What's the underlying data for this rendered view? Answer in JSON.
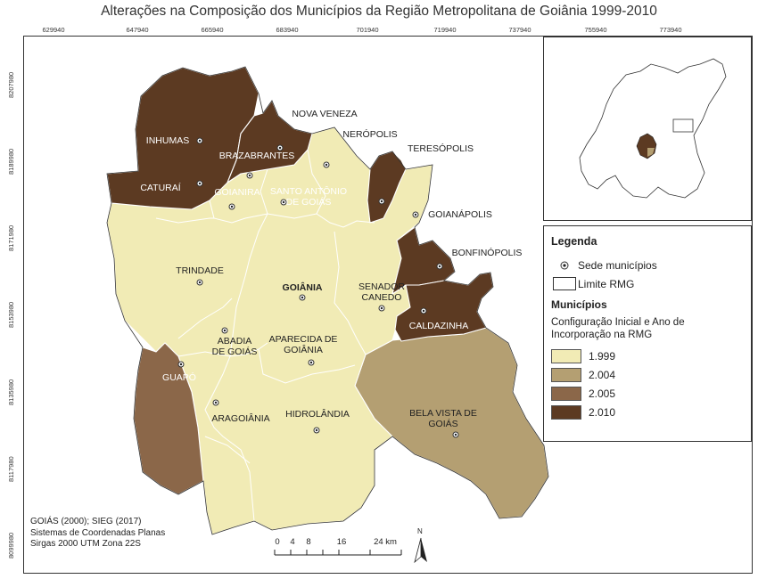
{
  "title": "Alterações na Composição dos Municípios da Região Metropolitana de Goiânia 1999-2010",
  "coords_top": [
    "629940",
    "647940",
    "665940",
    "683940",
    "701940",
    "719940",
    "737940",
    "755940",
    "773940"
  ],
  "coords_left": [
    "8207980",
    "8189980",
    "8171980",
    "8153980",
    "8135980",
    "8117980",
    "8099980"
  ],
  "colors": {
    "c1999": "#f1ebb5",
    "c2004": "#b49f72",
    "c2005": "#8b6749",
    "c2010": "#5c3a22"
  },
  "municipalities": [
    {
      "name": "INHUMAS",
      "year": "2.010"
    },
    {
      "name": "CATURAÍ",
      "year": "2.010"
    },
    {
      "name": "BRAZABRANTES",
      "year": "2.010"
    },
    {
      "name": "NOVA VENEZA",
      "year": "2.010"
    },
    {
      "name": "NERÓPOLIS",
      "year": "1.999"
    },
    {
      "name": "TERESÓPOLIS",
      "year": "2.010"
    },
    {
      "name": "GOIANIRA",
      "year": "1.999"
    },
    {
      "name": "SANTO ANTÔNIO DE GOIÁS",
      "line1": "SANTO ANTÔNIO",
      "line2": "DE GOIÁS",
      "year": "1.999"
    },
    {
      "name": "GOIANÁPOLIS",
      "year": "1.999"
    },
    {
      "name": "BONFINÓPOLIS",
      "year": "2.010"
    },
    {
      "name": "TRINDADE",
      "year": "1.999"
    },
    {
      "name": "GOIÂNIA",
      "year": "1.999"
    },
    {
      "name": "SENADOR CANEDO",
      "line1": "SENADOR",
      "line2": "CANEDO",
      "year": "1.999"
    },
    {
      "name": "CALDAZINHA",
      "year": "2.010"
    },
    {
      "name": "ABADIA DE GOIÁS",
      "line1": "ABADIA",
      "line2": "DE GOIÁS",
      "year": "1.999"
    },
    {
      "name": "APARECIDA DE GOIÂNIA",
      "line1": "APARECIDA DE",
      "line2": "GOIÂNIA",
      "year": "1.999"
    },
    {
      "name": "GUAPÓ",
      "year": "2.005"
    },
    {
      "name": "ARAGOIÂNIA",
      "year": "1.999"
    },
    {
      "name": "HIDROLÂNDIA",
      "year": "1.999"
    },
    {
      "name": "BELA VISTA DE GOIÁS",
      "line1": "BELA VISTA DE",
      "line2": "GOIÁS",
      "year": "2.004"
    }
  ],
  "legend": {
    "title": "Legenda",
    "seat_label": "Sede municípios",
    "boundary_label": "Limite RMG",
    "municipios_title": "Municípios",
    "desc": "Configuração Inicial e Ano de Incorporação na RMG",
    "items": [
      {
        "label": "1.999",
        "color": "#f1ebb5"
      },
      {
        "label": "2.004",
        "color": "#b49f72"
      },
      {
        "label": "2.005",
        "color": "#8b6749"
      },
      {
        "label": "2.010",
        "color": "#5c3a22"
      }
    ]
  },
  "source": {
    "line1": "GOIÁS (2000); SIEG (2017)",
    "line2": "Sistemas de Coordenadas Planas",
    "line3": "Sirgas 2000 UTM Zona 22S"
  },
  "scale": {
    "labels": [
      "0",
      "4",
      "8",
      "16",
      "24 km"
    ],
    "north": "N"
  }
}
